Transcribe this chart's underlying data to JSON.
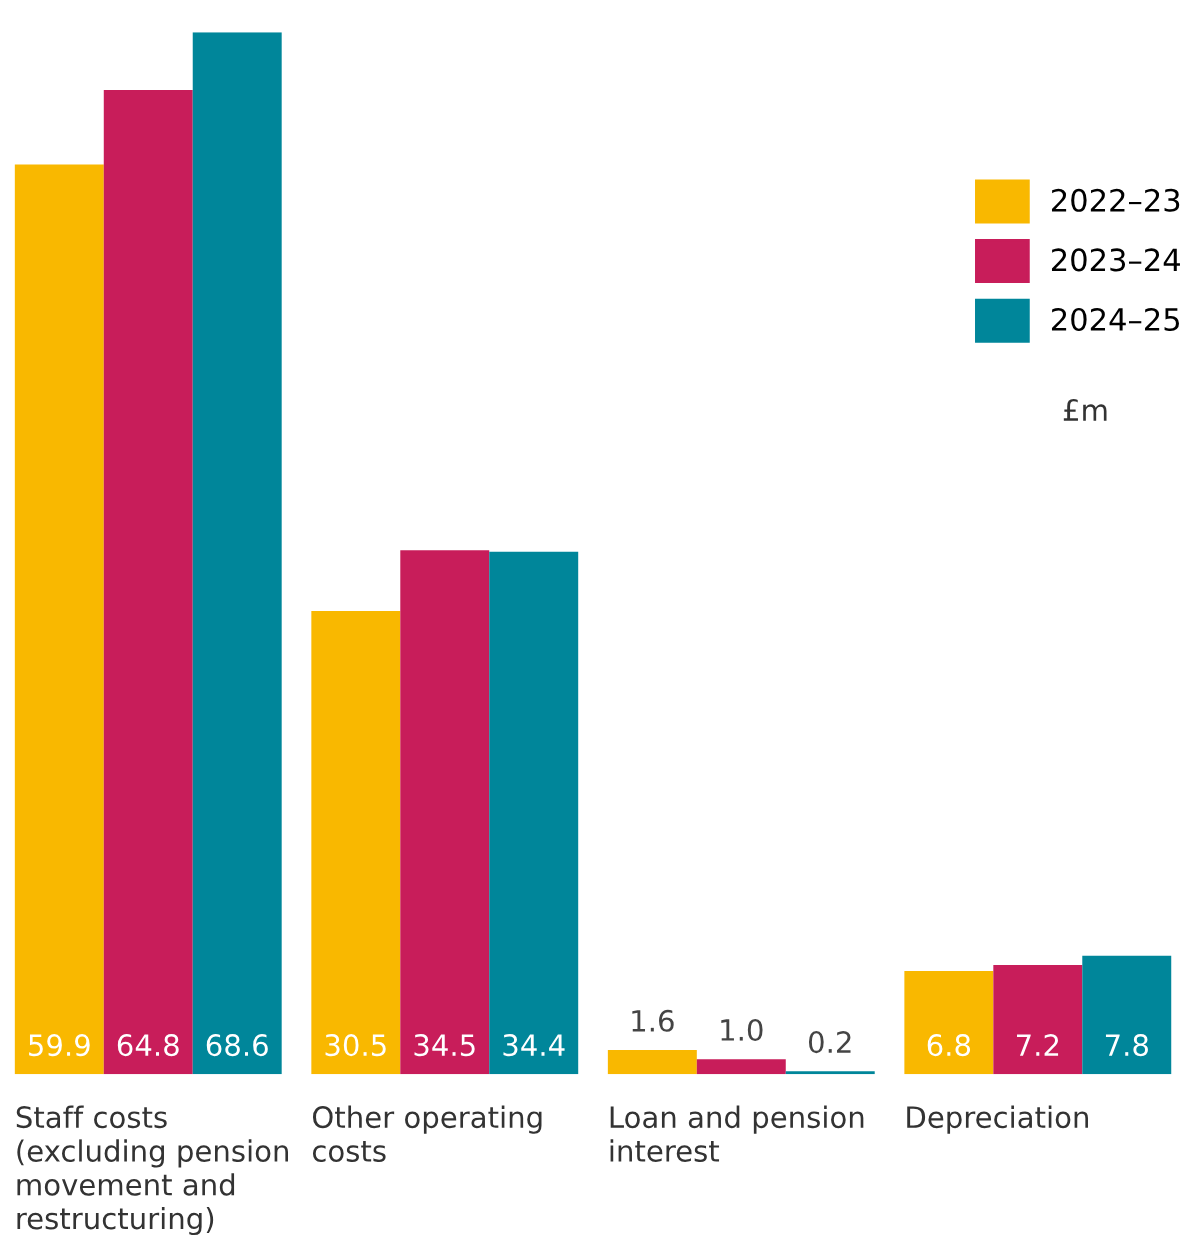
{
  "chart_data": {
    "type": "bar",
    "categories": [
      "Staff costs\n(excluding pension\nmovement and\nrestructuring)",
      "Other operating\ncosts",
      "Loan and pension\ninterest",
      "Depreciation"
    ],
    "series": [
      {
        "name": "2022–23",
        "color": "#f9b800",
        "values": [
          59.9,
          30.5,
          1.6,
          6.8
        ],
        "value_labels": [
          "59.9",
          "30.5",
          "1.6",
          "6.8"
        ]
      },
      {
        "name": "2023–24",
        "color": "#c81d5a",
        "values": [
          64.8,
          34.5,
          1.0,
          7.2
        ],
        "value_labels": [
          "64.8",
          "34.5",
          "1.0",
          "7.2"
        ]
      },
      {
        "name": "2024–25",
        "color": "#00869a",
        "values": [
          68.6,
          34.4,
          0.2,
          7.8
        ],
        "value_labels": [
          "68.6",
          "34.4",
          "0.2",
          "7.8"
        ]
      }
    ],
    "legend": "top right",
    "annotations": [
      "£m"
    ]
  }
}
